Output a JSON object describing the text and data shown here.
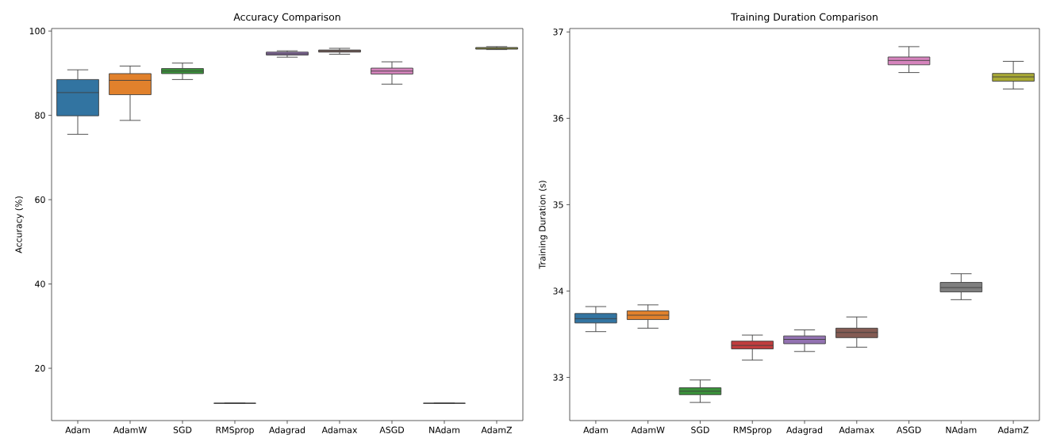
{
  "chart_data": [
    {
      "type": "box",
      "title": "Accuracy Comparison",
      "ylabel": "Accuracy (%)",
      "categories": [
        "Adam",
        "AdamW",
        "SGD",
        "RMSprop",
        "Adagrad",
        "Adamax",
        "ASGD",
        "NAdam",
        "AdamZ"
      ],
      "colors": [
        "#3274a1",
        "#e1812c",
        "#3a923a",
        "#3f3f3f",
        "#9372b2",
        "#845b53",
        "#d684bd",
        "#3f3f3f",
        "#a9aa35"
      ],
      "boxes": [
        {
          "low": 75.5,
          "q1": 79.9,
          "median": 85.4,
          "q3": 88.5,
          "high": 90.8
        },
        {
          "low": 78.8,
          "q1": 84.9,
          "median": 88.3,
          "q3": 89.9,
          "high": 91.7
        },
        {
          "low": 88.5,
          "q1": 89.9,
          "median": 90.5,
          "q3": 91.1,
          "high": 92.4
        },
        {
          "low": 11.7,
          "q1": 11.7,
          "median": 11.7,
          "q3": 11.7,
          "high": 11.7
        },
        {
          "low": 93.8,
          "q1": 94.3,
          "median": 94.6,
          "q3": 95.0,
          "high": 95.3
        },
        {
          "low": 94.5,
          "q1": 95.0,
          "median": 95.3,
          "q3": 95.5,
          "high": 95.9
        },
        {
          "low": 87.4,
          "q1": 89.8,
          "median": 90.5,
          "q3": 91.2,
          "high": 92.7
        },
        {
          "low": 11.7,
          "q1": 11.7,
          "median": 11.7,
          "q3": 11.7,
          "high": 11.7
        },
        {
          "low": 95.6,
          "q1": 95.7,
          "median": 95.9,
          "q3": 96.1,
          "high": 96.3
        }
      ],
      "ylim": [
        7.6,
        100.6
      ],
      "yticks": [
        20,
        40,
        60,
        80,
        100
      ]
    },
    {
      "type": "box",
      "title": "Training Duration Comparison",
      "ylabel": "Training Duration (s)",
      "categories": [
        "Adam",
        "AdamW",
        "SGD",
        "RMSprop",
        "Adagrad",
        "Adamax",
        "ASGD",
        "NAdam",
        "AdamZ"
      ],
      "colors": [
        "#3274a1",
        "#e1812c",
        "#3a923a",
        "#c03d3e",
        "#9372b2",
        "#845b53",
        "#d684bd",
        "#7f7f7f",
        "#a9aa35"
      ],
      "boxes": [
        {
          "low": 33.53,
          "q1": 33.63,
          "median": 33.68,
          "q3": 33.74,
          "high": 33.82
        },
        {
          "low": 33.57,
          "q1": 33.67,
          "median": 33.72,
          "q3": 33.77,
          "high": 33.84
        },
        {
          "low": 32.71,
          "q1": 32.8,
          "median": 32.84,
          "q3": 32.88,
          "high": 32.97
        },
        {
          "low": 33.2,
          "q1": 33.33,
          "median": 33.37,
          "q3": 33.42,
          "high": 33.49
        },
        {
          "low": 33.3,
          "q1": 33.39,
          "median": 33.44,
          "q3": 33.48,
          "high": 33.55
        },
        {
          "low": 33.35,
          "q1": 33.46,
          "median": 33.52,
          "q3": 33.57,
          "high": 33.7
        },
        {
          "low": 36.53,
          "q1": 36.62,
          "median": 36.67,
          "q3": 36.71,
          "high": 36.83
        },
        {
          "low": 33.9,
          "q1": 33.99,
          "median": 34.04,
          "q3": 34.1,
          "high": 34.2
        },
        {
          "low": 36.34,
          "q1": 36.43,
          "median": 36.48,
          "q3": 36.52,
          "high": 36.66
        }
      ],
      "ylim": [
        32.5,
        37.04
      ],
      "yticks": [
        33,
        34,
        35,
        36,
        37
      ]
    }
  ]
}
